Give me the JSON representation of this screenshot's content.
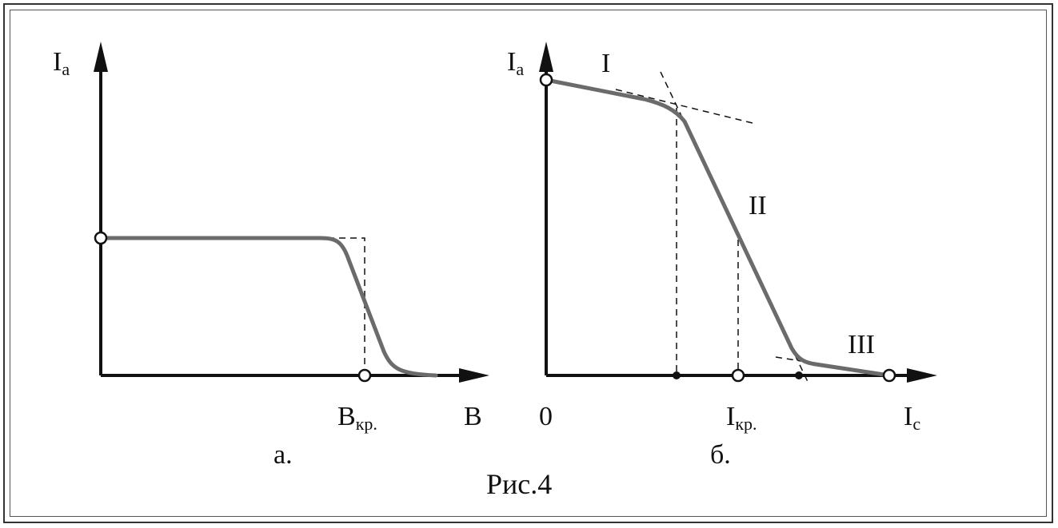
{
  "panel_a": {
    "y_axis_label": "I",
    "y_axis_sub": "a",
    "x_axis_label": "B",
    "critical_label": "B",
    "critical_sub": "кр.",
    "caption": "а."
  },
  "panel_b": {
    "y_axis_label": "I",
    "y_axis_sub": "a",
    "origin_label": "0",
    "x_axis_label": "I",
    "x_axis_sub": "c",
    "critical_label": "I",
    "critical_sub": "кр.",
    "region_1": "I",
    "region_2": "II",
    "region_3": "III",
    "caption": "б."
  },
  "figure_caption": "Рис.4"
}
